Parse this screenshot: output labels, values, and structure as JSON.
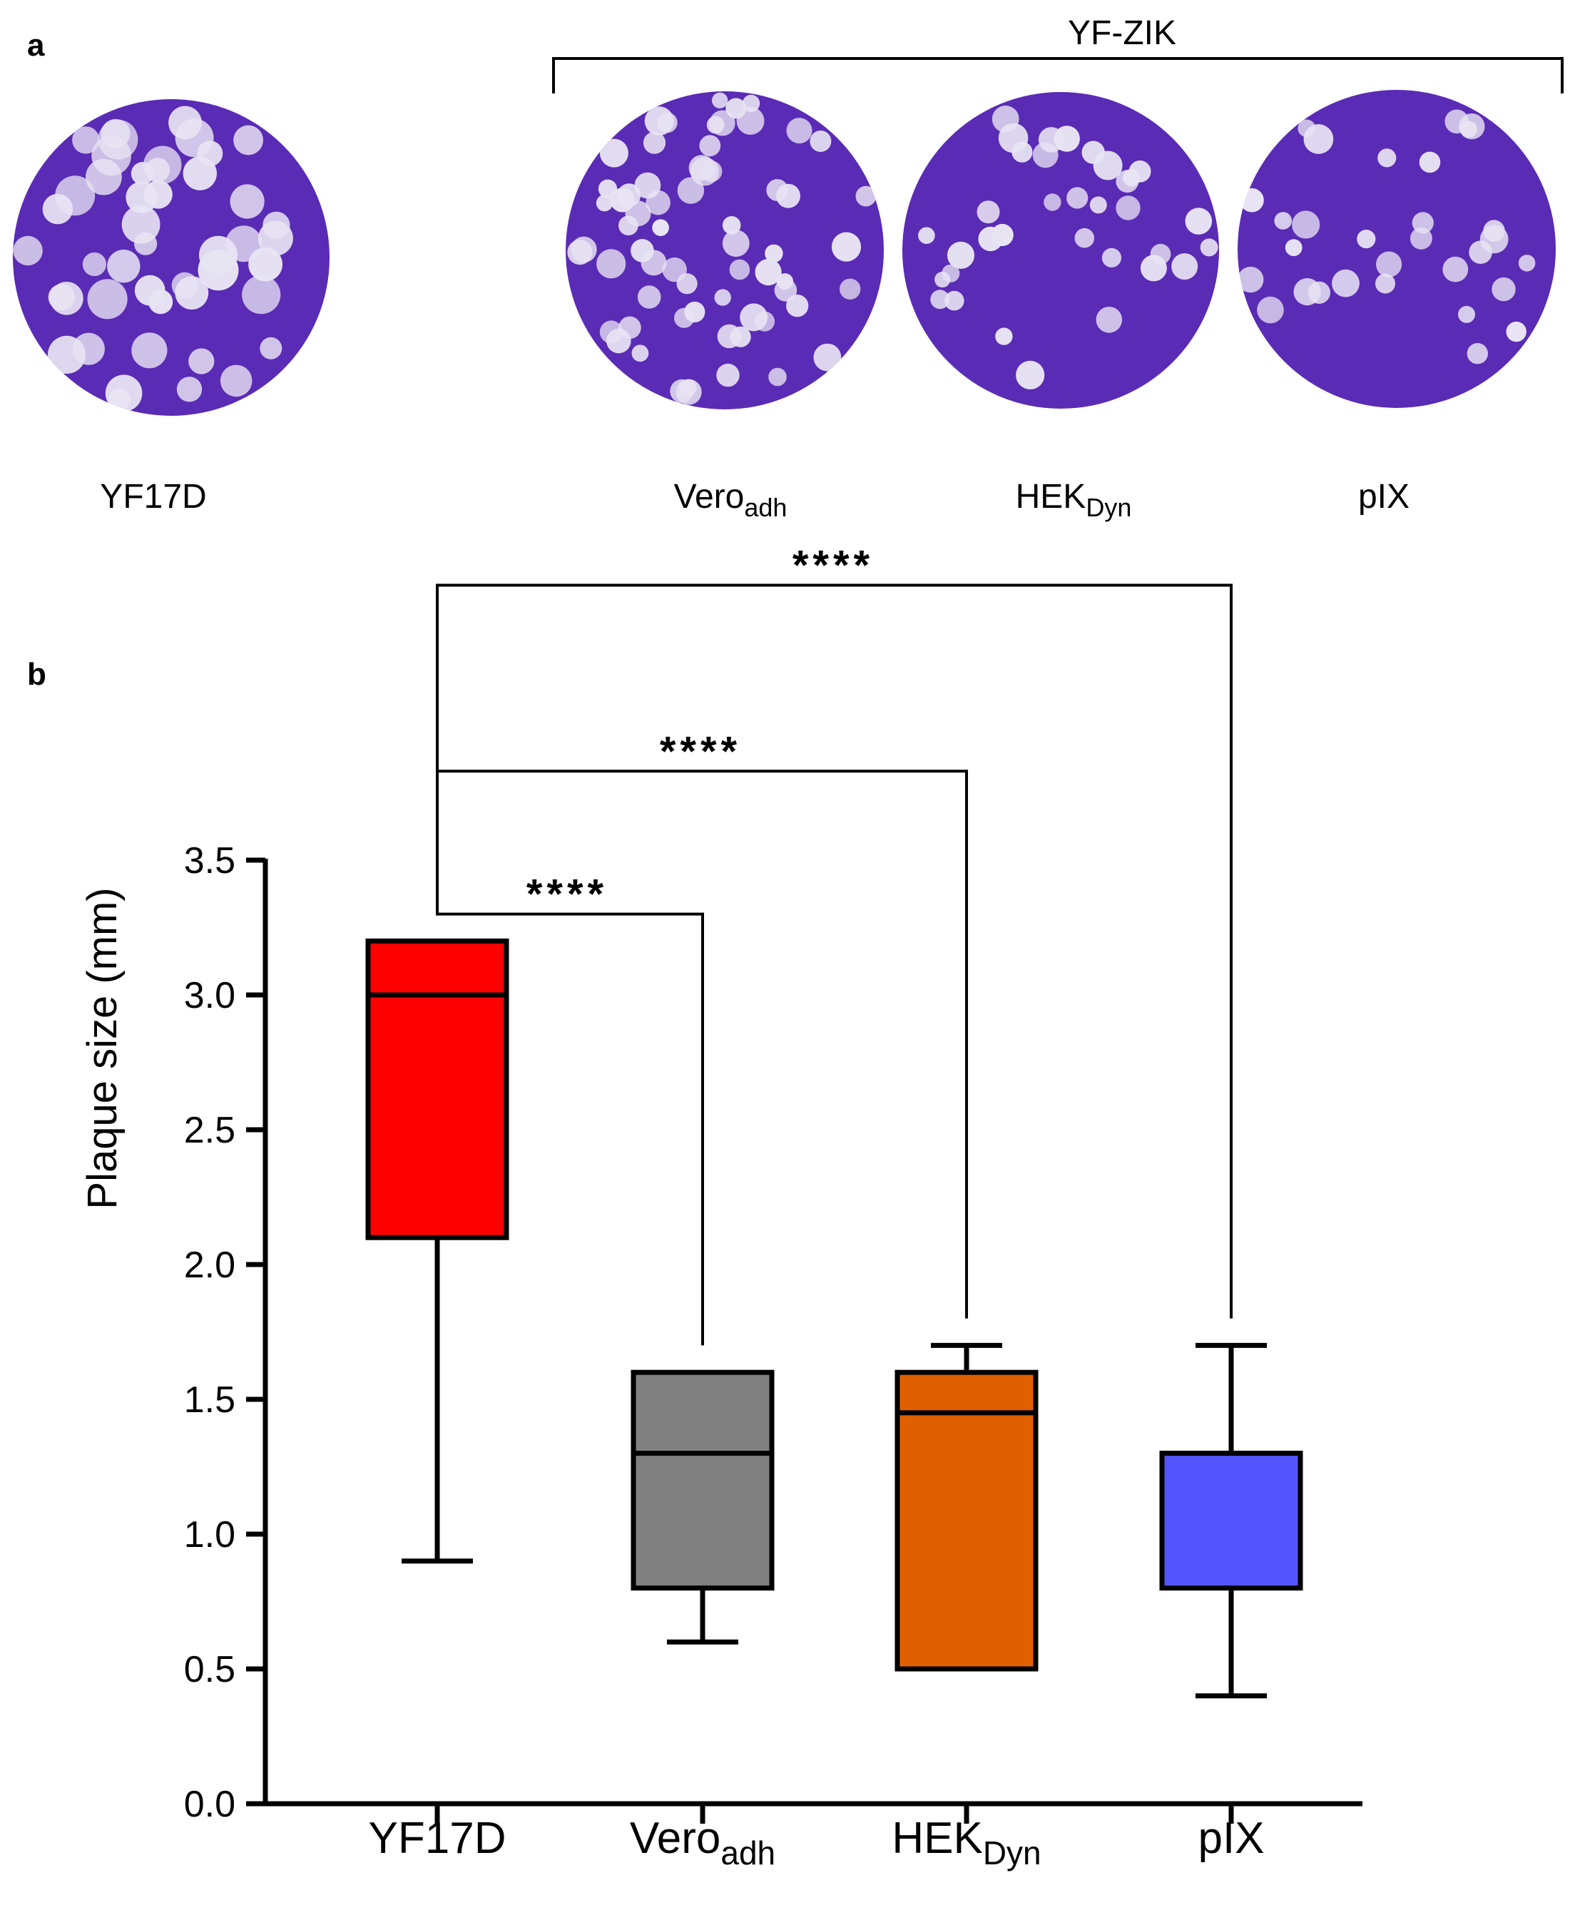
{
  "panel_a": {
    "label": "a",
    "group_title": "YF-ZIK",
    "dishes": [
      {
        "name": "YF17D",
        "sub": "",
        "plaques": 46,
        "seed": 11
      },
      {
        "name": "Vero",
        "sub": "adh",
        "plaques": 64,
        "seed": 23
      },
      {
        "name": "HEK",
        "sub": "Dyn",
        "plaques": 34,
        "seed": 37
      },
      {
        "name": "pIX",
        "sub": "",
        "plaques": 30,
        "seed": 53
      }
    ],
    "dish_color": "#5a2bb5",
    "plaque_color": "#e8e4f3"
  },
  "panel_b": {
    "label": "b"
  },
  "chart_data": {
    "type": "box",
    "title": "",
    "xlabel": "",
    "ylabel": "Plaque size (mm)",
    "ylim": [
      0,
      3.5
    ],
    "yticks": [
      "0.0",
      "0.5",
      "1.0",
      "1.5",
      "2.0",
      "2.5",
      "3.0",
      "3.5"
    ],
    "grid": false,
    "categories": [
      {
        "name": "YF17D",
        "sub": ""
      },
      {
        "name": "Vero",
        "sub": "adh"
      },
      {
        "name": "HEK",
        "sub": "Dyn"
      },
      {
        "name": "pIX",
        "sub": ""
      }
    ],
    "boxes": [
      {
        "min": 0.9,
        "q1": 2.1,
        "median": 3.0,
        "q3": 3.2,
        "max": 3.2,
        "color": "#ff0000"
      },
      {
        "min": 0.6,
        "q1": 0.8,
        "median": 1.3,
        "q3": 1.6,
        "max": 1.6,
        "color": "#808080"
      },
      {
        "min": 0.5,
        "q1": 0.5,
        "median": 1.45,
        "q3": 1.6,
        "max": 1.7,
        "color": "#e06000"
      },
      {
        "min": 0.4,
        "q1": 0.8,
        "median": 1.3,
        "q3": 1.3,
        "max": 1.7,
        "color": "#5555ff"
      }
    ],
    "comparisons": [
      {
        "from": 0,
        "to": 1,
        "label": "****",
        "level": 3.3
      },
      {
        "from": 0,
        "to": 2,
        "label": "****",
        "level": 3.83
      },
      {
        "from": 0,
        "to": 3,
        "label": "****",
        "level": 4.52
      }
    ]
  }
}
